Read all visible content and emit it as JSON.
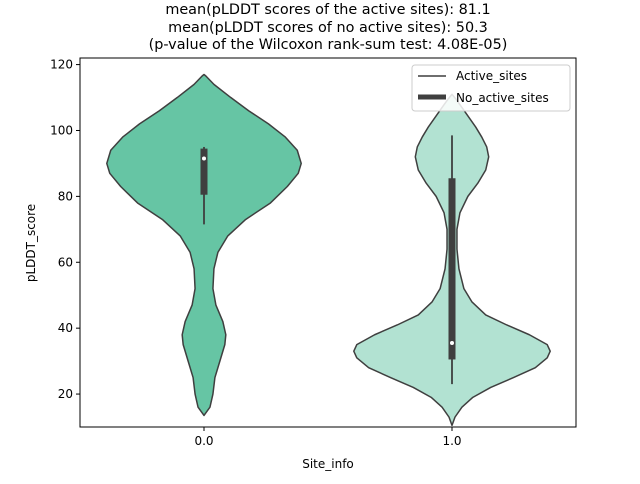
{
  "chart_data": {
    "type": "violin",
    "title_lines": [
      "mean(pLDDT scores of the active sites): 81.1",
      "mean(pLDDT scores of no active sites): 50.3",
      "(p-value of the Wilcoxon rank-sum test: 4.08E-05)"
    ],
    "xlabel": "Site_info",
    "ylabel": "pLDDT_score",
    "ylim": [
      10,
      122
    ],
    "yticks": [
      20,
      40,
      60,
      80,
      100,
      120
    ],
    "categories": [
      "0.0",
      "1.0"
    ],
    "legend": {
      "placement": "upper right",
      "entries": [
        {
          "label": "Active_sites",
          "style": "line"
        },
        {
          "label": "No_active_sites",
          "style": "thick-line"
        }
      ]
    },
    "series": [
      {
        "name": "Active_sites",
        "category": "0.0",
        "color": "#66c5a4",
        "min": 13.5,
        "max": 117,
        "q1": 80.5,
        "median": 91.5,
        "q3": 94.5,
        "whisker_low": 71.5,
        "whisker_high": 95,
        "density": [
          [
            13.5,
            0.0
          ],
          [
            16,
            0.06
          ],
          [
            20,
            0.09
          ],
          [
            25,
            0.11
          ],
          [
            30,
            0.16
          ],
          [
            35,
            0.21
          ],
          [
            38,
            0.22
          ],
          [
            42,
            0.19
          ],
          [
            47,
            0.12
          ],
          [
            52,
            0.09
          ],
          [
            58,
            0.1
          ],
          [
            63,
            0.14
          ],
          [
            68,
            0.24
          ],
          [
            73,
            0.42
          ],
          [
            78,
            0.67
          ],
          [
            83,
            0.84
          ],
          [
            87,
            0.95
          ],
          [
            90,
            0.98
          ],
          [
            94,
            0.94
          ],
          [
            98,
            0.82
          ],
          [
            102,
            0.65
          ],
          [
            106,
            0.45
          ],
          [
            110,
            0.27
          ],
          [
            114,
            0.1
          ],
          [
            116.5,
            0.02
          ],
          [
            117,
            0.0
          ]
        ]
      },
      {
        "name": "No_active_sites",
        "category": "1.0",
        "color": "#b2e2d2",
        "min": 10.5,
        "max": 111,
        "q1": 30.5,
        "median": 35.5,
        "q3": 85.5,
        "whisker_low": 23,
        "whisker_high": 98.5,
        "density": [
          [
            10.5,
            0.0
          ],
          [
            13,
            0.03
          ],
          [
            16,
            0.1
          ],
          [
            19,
            0.21
          ],
          [
            22,
            0.39
          ],
          [
            25,
            0.62
          ],
          [
            28,
            0.84
          ],
          [
            31,
            0.96
          ],
          [
            33,
            0.99
          ],
          [
            35,
            0.96
          ],
          [
            38,
            0.78
          ],
          [
            41,
            0.55
          ],
          [
            44,
            0.34
          ],
          [
            48,
            0.2
          ],
          [
            52,
            0.12
          ],
          [
            58,
            0.07
          ],
          [
            64,
            0.05
          ],
          [
            70,
            0.05
          ],
          [
            75,
            0.08
          ],
          [
            80,
            0.16
          ],
          [
            84,
            0.26
          ],
          [
            88,
            0.34
          ],
          [
            92,
            0.37
          ],
          [
            95,
            0.35
          ],
          [
            98,
            0.3
          ],
          [
            101,
            0.24
          ],
          [
            104,
            0.17
          ],
          [
            107,
            0.1
          ],
          [
            109.5,
            0.04
          ],
          [
            111,
            0.0
          ]
        ]
      }
    ]
  }
}
